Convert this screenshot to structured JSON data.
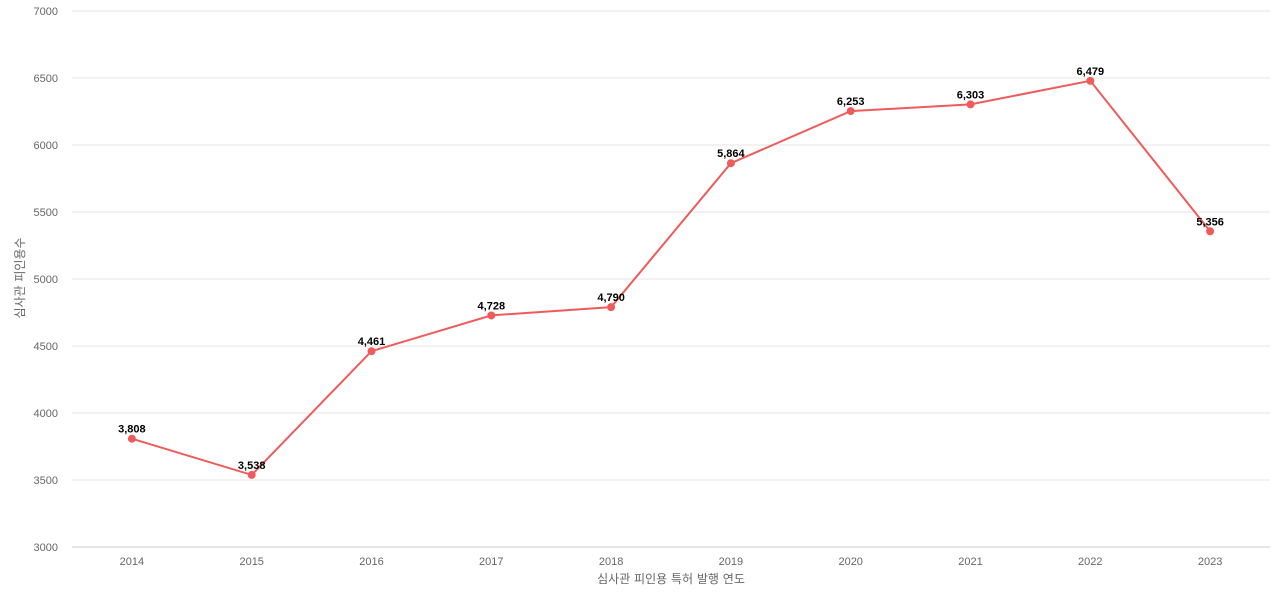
{
  "chart_data": {
    "type": "line",
    "xlabel": "심사관 피인용 특허 발행 연도",
    "ylabel": "심사관 피인용수",
    "ylim": [
      3000,
      7000
    ],
    "yticks": [
      "3000",
      "3500",
      "4000",
      "4500",
      "5000",
      "5500",
      "6000",
      "6500",
      "7000"
    ],
    "grid": true,
    "categories": [
      "2014",
      "2015",
      "2016",
      "2017",
      "2018",
      "2019",
      "2020",
      "2021",
      "2022",
      "2023"
    ],
    "series": [
      {
        "values": [
          3808,
          3538,
          4461,
          4728,
          4790,
          5864,
          6253,
          6303,
          6479,
          5356
        ],
        "labels": [
          "3,808",
          "3,538",
          "4,461",
          "4,728",
          "4,790",
          "5,864",
          "6,253",
          "6,303",
          "6,479",
          "5,356"
        ]
      }
    ],
    "line_color": "#ef5b5b"
  }
}
